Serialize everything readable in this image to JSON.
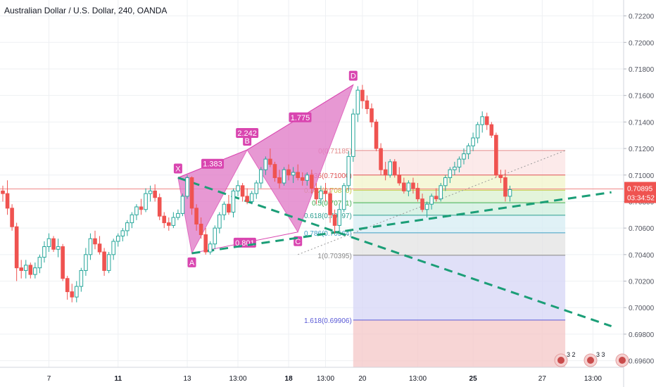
{
  "title": "Australian Dollar / U.S. Dollar, 240, OANDA",
  "colors": {
    "up": "#26a69a",
    "down": "#ef5350",
    "pattern": "#d946b0",
    "pattern_fill": "#e27fc9",
    "trend": "#1b9e77",
    "price_line": "#f18a8a",
    "axis_text": "#50535e",
    "grid": "#eef0f3"
  },
  "chart_data": {
    "type": "candlestick",
    "symbol": "Australian Dollar / U.S. Dollar",
    "interval": "240",
    "source": "OANDA",
    "ylim": [
      0.6955,
      0.7232
    ],
    "y_ticks": [
      "0.72200",
      "0.72000",
      "0.71800",
      "0.71600",
      "0.71400",
      "0.71200",
      "0.71000",
      "0.70800",
      "0.70600",
      "0.70400",
      "0.70200",
      "0.70000",
      "0.69800",
      "0.69600"
    ],
    "x_ticks": [
      {
        "label": "7",
        "bar": 10,
        "bold": false
      },
      {
        "label": "11",
        "bar": 25,
        "bold": true
      },
      {
        "label": "13",
        "bar": 40,
        "bold": false
      },
      {
        "label": "13:00",
        "bar": 51,
        "bold": false
      },
      {
        "label": "18",
        "bar": 62,
        "bold": true
      },
      {
        "label": "13:00",
        "bar": 70,
        "bold": false
      },
      {
        "label": "20",
        "bar": 78,
        "bold": false
      },
      {
        "label": "13:00",
        "bar": 90,
        "bold": false
      },
      {
        "label": "25",
        "bar": 102,
        "bold": true
      },
      {
        "label": "27",
        "bar": 117,
        "bold": false
      },
      {
        "label": "13:00",
        "bar": 128,
        "bold": false
      }
    ],
    "current_price": "0.70895",
    "countdown": "03:34:52",
    "candles": [
      [
        0.7088,
        0.7092,
        0.708,
        0.7086
      ],
      [
        0.7086,
        0.7096,
        0.707,
        0.7075
      ],
      [
        0.7075,
        0.7078,
        0.7058,
        0.7061
      ],
      [
        0.7061,
        0.7064,
        0.702,
        0.703
      ],
      [
        0.703,
        0.7036,
        0.7022,
        0.7028
      ],
      [
        0.7028,
        0.7036,
        0.7022,
        0.7032
      ],
      [
        0.7032,
        0.7034,
        0.7022,
        0.7025
      ],
      [
        0.7025,
        0.7034,
        0.7022,
        0.703
      ],
      [
        0.703,
        0.704,
        0.7026,
        0.7038
      ],
      [
        0.7038,
        0.705,
        0.7034,
        0.7046
      ],
      [
        0.7046,
        0.7056,
        0.7042,
        0.7052
      ],
      [
        0.7052,
        0.7054,
        0.7042,
        0.7044
      ],
      [
        0.7044,
        0.7052,
        0.7038,
        0.7046
      ],
      [
        0.7046,
        0.7048,
        0.702,
        0.7022
      ],
      [
        0.7022,
        0.7024,
        0.7006,
        0.7012
      ],
      [
        0.7012,
        0.7018,
        0.7004,
        0.7008
      ],
      [
        0.7008,
        0.702,
        0.7004,
        0.7016
      ],
      [
        0.7016,
        0.703,
        0.7012,
        0.7028
      ],
      [
        0.7028,
        0.7045,
        0.7024,
        0.704
      ],
      [
        0.704,
        0.7056,
        0.7036,
        0.7052
      ],
      [
        0.7052,
        0.7058,
        0.7044,
        0.7048
      ],
      [
        0.7048,
        0.7054,
        0.704,
        0.7042
      ],
      [
        0.7042,
        0.7045,
        0.7024,
        0.7028
      ],
      [
        0.7028,
        0.7042,
        0.7026,
        0.704
      ],
      [
        0.704,
        0.7052,
        0.7036,
        0.705
      ],
      [
        0.705,
        0.7056,
        0.7046,
        0.7054
      ],
      [
        0.7054,
        0.706,
        0.705,
        0.7058
      ],
      [
        0.7058,
        0.7066,
        0.7054,
        0.7064
      ],
      [
        0.7064,
        0.7072,
        0.706,
        0.707
      ],
      [
        0.707,
        0.7078,
        0.7066,
        0.7076
      ],
      [
        0.7076,
        0.7082,
        0.707,
        0.7074
      ],
      [
        0.7074,
        0.709,
        0.7072,
        0.7086
      ],
      [
        0.7086,
        0.7092,
        0.708,
        0.7088
      ],
      [
        0.7088,
        0.7093,
        0.708,
        0.7083
      ],
      [
        0.7083,
        0.7086,
        0.7066,
        0.7069
      ],
      [
        0.7069,
        0.7072,
        0.706,
        0.7064
      ],
      [
        0.7064,
        0.7068,
        0.7058,
        0.7062
      ],
      [
        0.7062,
        0.7072,
        0.706,
        0.7068
      ],
      [
        0.7068,
        0.7074,
        0.7066,
        0.7071
      ],
      [
        0.7071,
        0.7086,
        0.7069,
        0.7084
      ],
      [
        0.7084,
        0.71,
        0.7082,
        0.7098
      ],
      [
        0.7098,
        0.7099,
        0.707,
        0.7075
      ],
      [
        0.7075,
        0.7078,
        0.7058,
        0.7063
      ],
      [
        0.7063,
        0.7068,
        0.7052,
        0.7055
      ],
      [
        0.7055,
        0.706,
        0.704,
        0.7042
      ],
      [
        0.7042,
        0.705,
        0.704,
        0.7048
      ],
      [
        0.7048,
        0.7062,
        0.7044,
        0.706
      ],
      [
        0.706,
        0.7072,
        0.7056,
        0.707
      ],
      [
        0.707,
        0.708,
        0.7066,
        0.7078
      ],
      [
        0.7078,
        0.7085,
        0.707,
        0.7072
      ],
      [
        0.7072,
        0.709,
        0.7068,
        0.7088
      ],
      [
        0.7088,
        0.7096,
        0.7084,
        0.7092
      ],
      [
        0.7092,
        0.7094,
        0.708,
        0.7084
      ],
      [
        0.7084,
        0.709,
        0.7078,
        0.708
      ],
      [
        0.708,
        0.7088,
        0.7078,
        0.7086
      ],
      [
        0.7086,
        0.7096,
        0.7082,
        0.7094
      ],
      [
        0.7094,
        0.7106,
        0.709,
        0.7104
      ],
      [
        0.7104,
        0.7114,
        0.71,
        0.7112
      ],
      [
        0.7112,
        0.712,
        0.7106,
        0.7108
      ],
      [
        0.7108,
        0.711,
        0.7095,
        0.7098
      ],
      [
        0.7098,
        0.7104,
        0.709,
        0.7094
      ],
      [
        0.7094,
        0.7106,
        0.7092,
        0.7104
      ],
      [
        0.7104,
        0.7108,
        0.7096,
        0.71
      ],
      [
        0.71,
        0.7106,
        0.7094,
        0.7102
      ],
      [
        0.7102,
        0.7108,
        0.7096,
        0.7098
      ],
      [
        0.7098,
        0.7102,
        0.7092,
        0.7096
      ],
      [
        0.7096,
        0.7102,
        0.7092,
        0.71
      ],
      [
        0.71,
        0.7104,
        0.7086,
        0.709
      ],
      [
        0.709,
        0.7094,
        0.7078,
        0.7082
      ],
      [
        0.7082,
        0.7092,
        0.7078,
        0.7088
      ],
      [
        0.7088,
        0.7094,
        0.708,
        0.7086
      ],
      [
        0.7086,
        0.709,
        0.7064,
        0.707
      ],
      [
        0.707,
        0.7074,
        0.7056,
        0.7062
      ],
      [
        0.7062,
        0.7078,
        0.7058,
        0.7074
      ],
      [
        0.7074,
        0.7094,
        0.7072,
        0.7092
      ],
      [
        0.7092,
        0.7118,
        0.7088,
        0.7114
      ],
      [
        0.7114,
        0.715,
        0.711,
        0.7146
      ],
      [
        0.7146,
        0.7167,
        0.714,
        0.7164
      ],
      [
        0.7164,
        0.7168,
        0.715,
        0.7156
      ],
      [
        0.7156,
        0.716,
        0.7146,
        0.715
      ],
      [
        0.715,
        0.7154,
        0.7136,
        0.714
      ],
      [
        0.714,
        0.7142,
        0.7118,
        0.712
      ],
      [
        0.712,
        0.7124,
        0.71,
        0.7104
      ],
      [
        0.7104,
        0.711,
        0.7096,
        0.71
      ],
      [
        0.71,
        0.7112,
        0.7098,
        0.711
      ],
      [
        0.711,
        0.7112,
        0.7098,
        0.71
      ],
      [
        0.71,
        0.7106,
        0.7092,
        0.7094
      ],
      [
        0.7094,
        0.7098,
        0.7086,
        0.7088
      ],
      [
        0.7088,
        0.7096,
        0.7084,
        0.7094
      ],
      [
        0.7094,
        0.7098,
        0.7086,
        0.709
      ],
      [
        0.709,
        0.7094,
        0.708,
        0.7082
      ],
      [
        0.7082,
        0.7086,
        0.7072,
        0.7074
      ],
      [
        0.7074,
        0.708,
        0.7068,
        0.7078
      ],
      [
        0.7078,
        0.7086,
        0.7074,
        0.7084
      ],
      [
        0.7084,
        0.709,
        0.708,
        0.7082
      ],
      [
        0.7082,
        0.7094,
        0.708,
        0.7092
      ],
      [
        0.7092,
        0.71,
        0.7088,
        0.7098
      ],
      [
        0.7098,
        0.7106,
        0.7094,
        0.7104
      ],
      [
        0.7104,
        0.711,
        0.71,
        0.7106
      ],
      [
        0.7106,
        0.7114,
        0.7102,
        0.7112
      ],
      [
        0.7112,
        0.712,
        0.7108,
        0.7116
      ],
      [
        0.7116,
        0.7124,
        0.7112,
        0.7122
      ],
      [
        0.7122,
        0.7132,
        0.7118,
        0.7128
      ],
      [
        0.7128,
        0.714,
        0.7124,
        0.7138
      ],
      [
        0.7138,
        0.7148,
        0.7132,
        0.7144
      ],
      [
        0.7144,
        0.7147,
        0.7134,
        0.7138
      ],
      [
        0.7138,
        0.714,
        0.7128,
        0.713
      ],
      [
        0.713,
        0.7132,
        0.7098,
        0.71
      ],
      [
        0.71,
        0.7104,
        0.7094,
        0.7098
      ],
      [
        0.7098,
        0.7104,
        0.708,
        0.7084
      ],
      [
        0.7084,
        0.7092,
        0.708,
        0.7089
      ]
    ],
    "harmonic_pattern": {
      "points": [
        {
          "label": "X",
          "bar": 38,
          "price": 0.7098
        },
        {
          "label": "A",
          "bar": 41,
          "price": 0.7041
        },
        {
          "label": "B",
          "bar": 53,
          "price": 0.7119
        },
        {
          "label": "C",
          "bar": 64,
          "price": 0.7057
        },
        {
          "label": "D",
          "bar": 76,
          "price": 0.7168
        }
      ],
      "ratios": [
        "1.383",
        "2.242",
        "1.775",
        "0.801"
      ]
    },
    "fibonacci": {
      "levels": [
        {
          "ratio": 0,
          "label": "0(0.71185)",
          "price": 0.71185
        },
        {
          "ratio": 0.236,
          "label": "0.236(0.71000)",
          "price": 0.71
        },
        {
          "ratio": 0.382,
          "label": "0.382(0.70886)",
          "price": 0.70886
        },
        {
          "ratio": 0.5,
          "label": "0.5(0.70791)",
          "price": 0.70791
        },
        {
          "ratio": 0.618,
          "label": "0.618(0.70697)",
          "price": 0.70697
        },
        {
          "ratio": 0.786,
          "label": "0.786(0.70564)",
          "price": 0.70564
        },
        {
          "ratio": 1,
          "label": "1(0.70395)",
          "price": 0.70395
        },
        {
          "ratio": 1.618,
          "label": "1.618(0.69906)",
          "price": 0.69906
        }
      ],
      "start_bar": 76,
      "end_bar": 122
    },
    "trendlines": [
      {
        "style": "dashed",
        "from": {
          "bar": 38,
          "price": 0.7098
        },
        "to": {
          "bar": 132,
          "price": 0.6986
        }
      },
      {
        "style": "dashed",
        "from": {
          "bar": 41,
          "price": 0.7041
        },
        "to": {
          "bar": 132,
          "price": 0.7087
        }
      }
    ],
    "grid": true
  }
}
